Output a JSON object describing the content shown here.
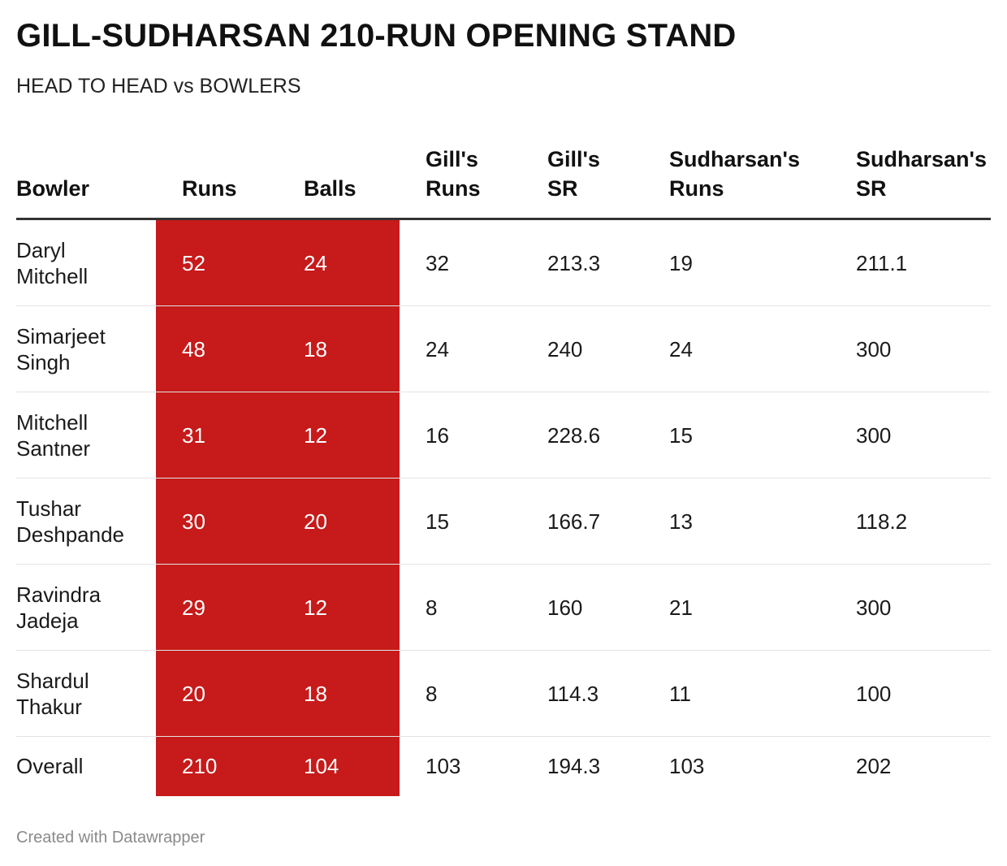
{
  "title": "GILL-SUDHARSAN 210-RUN OPENING STAND",
  "subtitle": "HEAD TO HEAD vs BOWLERS",
  "footer": "Created with Datawrapper",
  "colors": {
    "highlight": "#c71a1a",
    "header_rule": "#333333",
    "row_rule": "#e3e3e3"
  },
  "chart_data": {
    "type": "table",
    "columns": [
      "Bowler",
      "Runs",
      "Balls",
      "Gill's\nRuns",
      "Gill's\nSR",
      "Sudharsan's\nRuns",
      "Sudharsan's\nSR"
    ],
    "highlighted_columns": [
      "Runs",
      "Balls"
    ],
    "rows": [
      [
        "Daryl\nMitchell",
        "52",
        "24",
        "32",
        "213.3",
        "19",
        "211.1"
      ],
      [
        "Simarjeet\nSingh",
        "48",
        "18",
        "24",
        "240",
        "24",
        "300"
      ],
      [
        "Mitchell\nSantner",
        "31",
        "12",
        "16",
        "228.6",
        "15",
        "300"
      ],
      [
        "Tushar\nDeshpande",
        "30",
        "20",
        "15",
        "166.7",
        "13",
        "118.2"
      ],
      [
        "Ravindra\nJadeja",
        "29",
        "12",
        "8",
        "160",
        "21",
        "300"
      ],
      [
        "Shardul\nThakur",
        "20",
        "18",
        "8",
        "114.3",
        "11",
        "100"
      ],
      [
        "Overall",
        "210",
        "104",
        "103",
        "194.3",
        "103",
        "202"
      ]
    ]
  }
}
